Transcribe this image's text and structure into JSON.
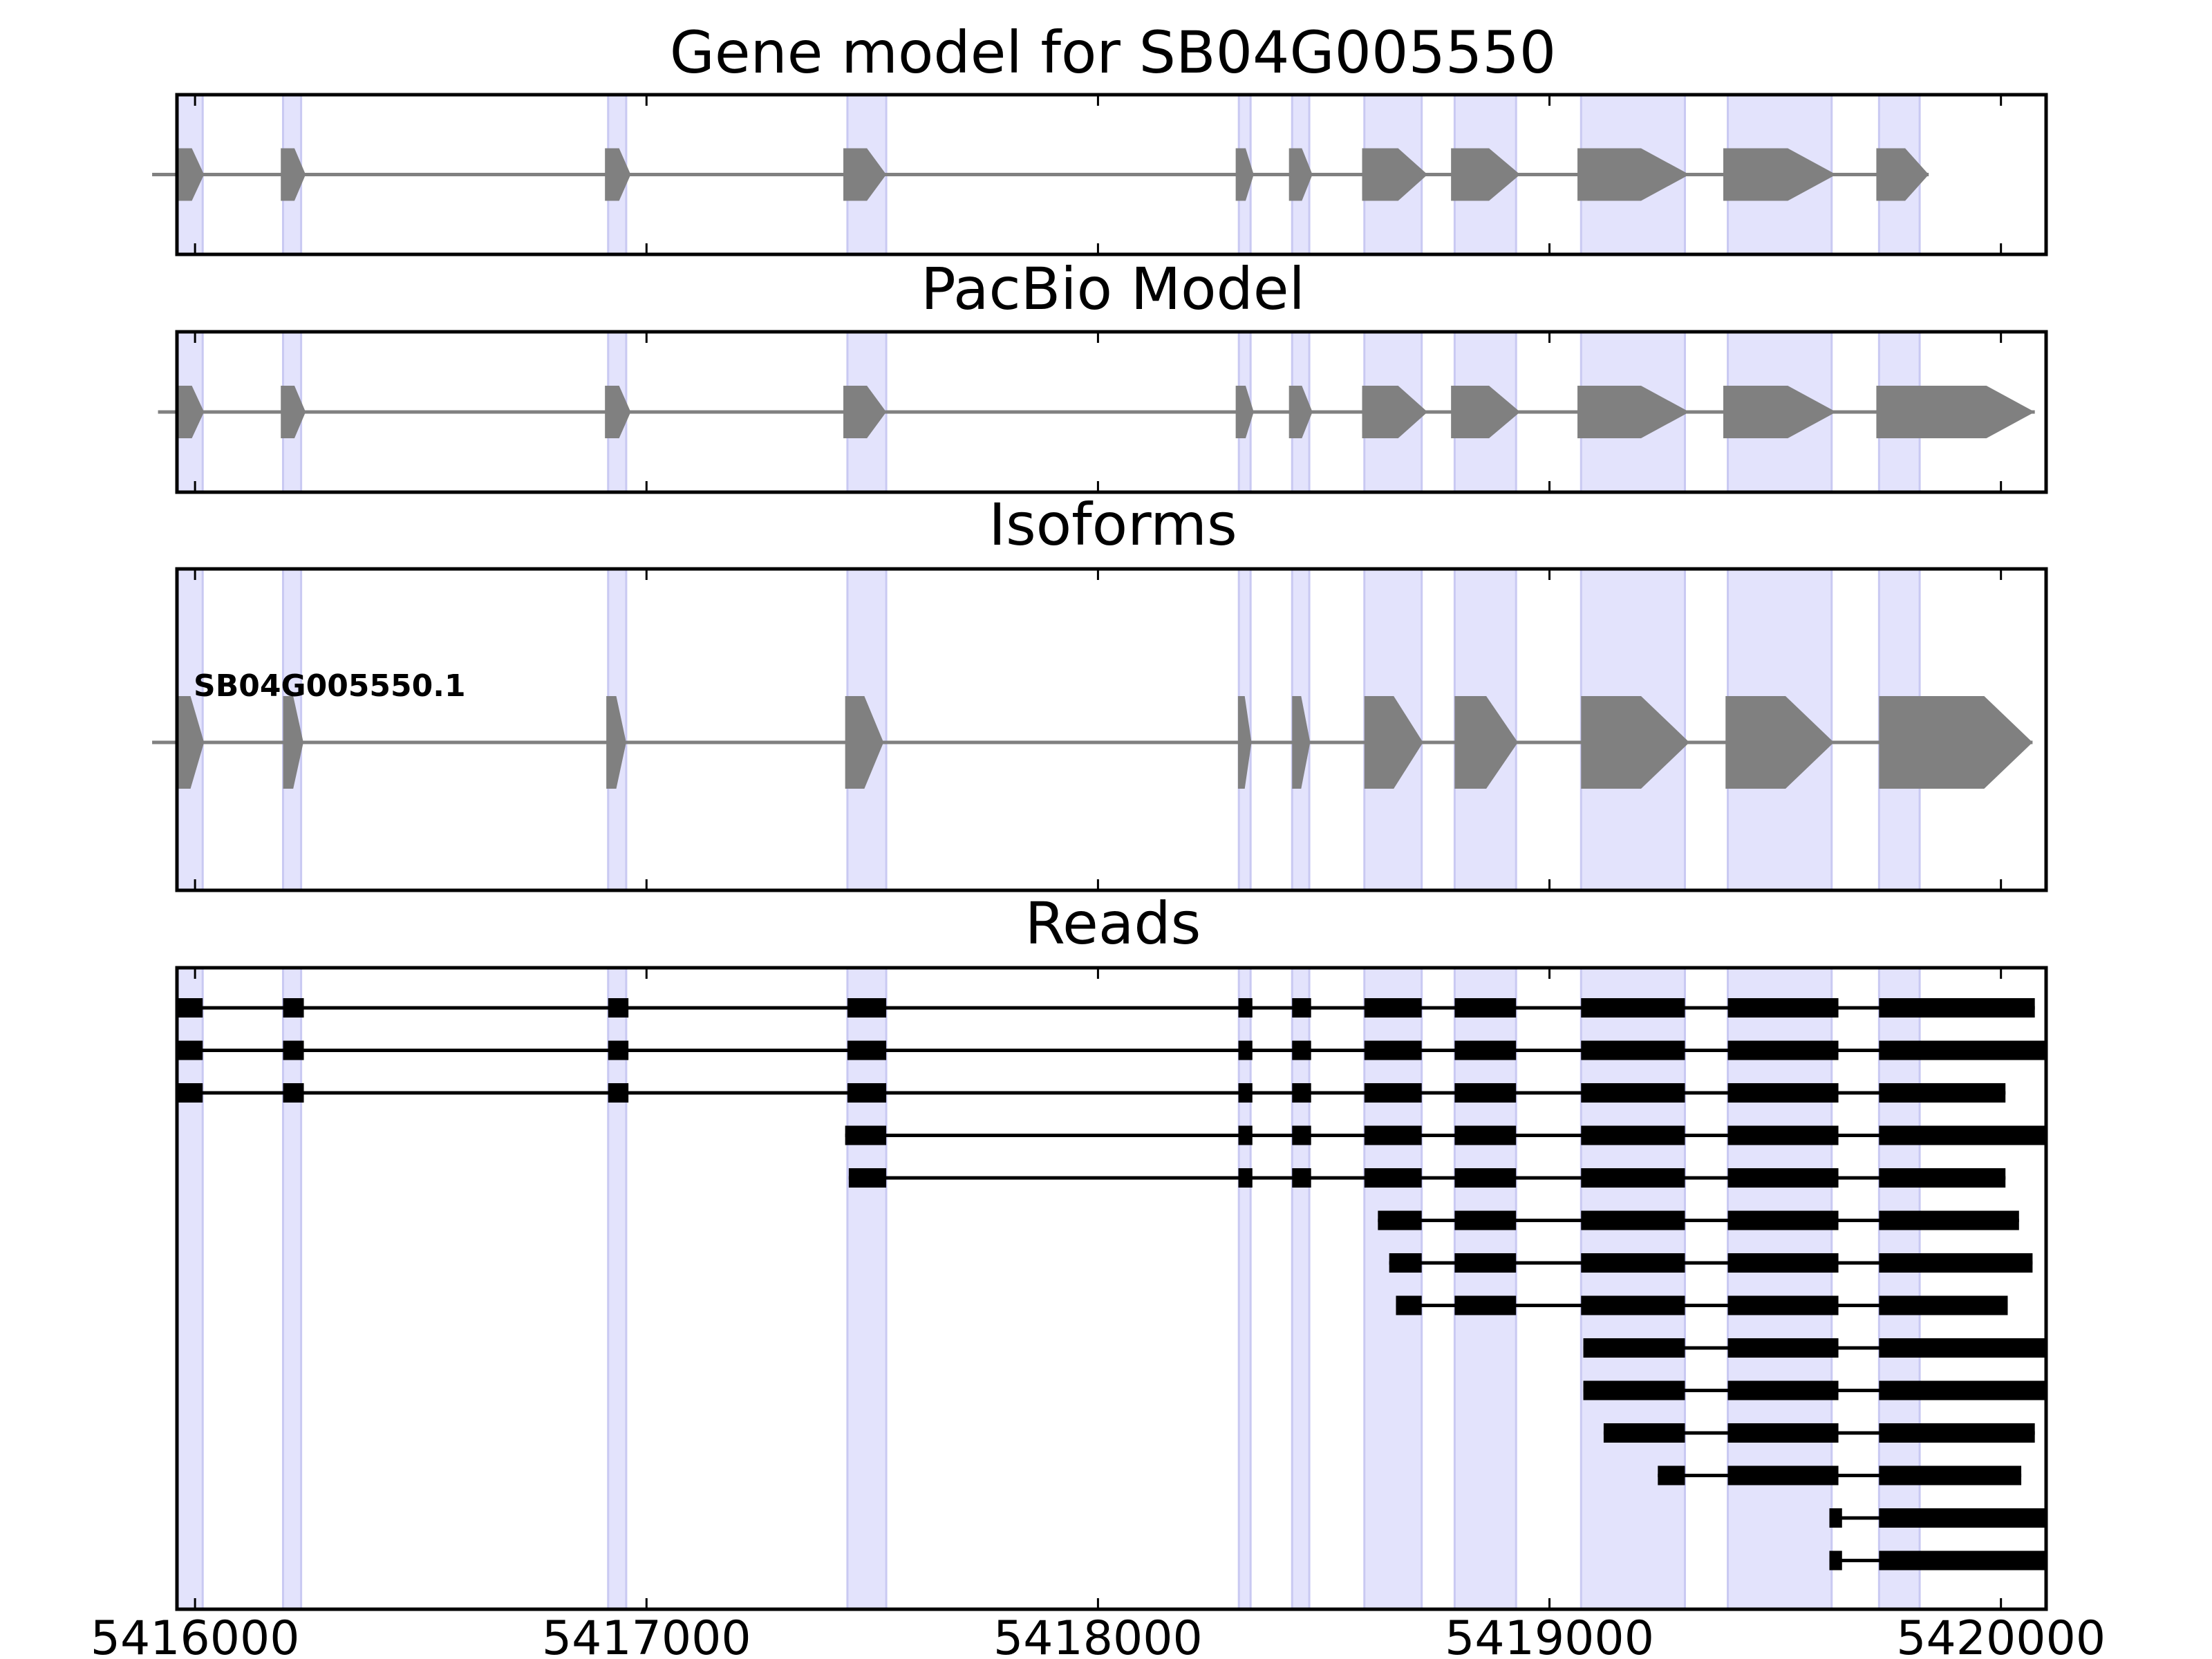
{
  "chart_data": {
    "type": "gene-model",
    "colors": {
      "exon_band": "#e3e3fc",
      "exon_band_edge": "#c9c9f2",
      "model_fill": "#808080",
      "read_fill": "#000000",
      "frame": "#000000"
    },
    "x_axis": {
      "range": [
        5415960,
        5420100
      ],
      "ticks": [
        5416000,
        5417000,
        5418000,
        5419000,
        5420000
      ],
      "tick_labels": [
        "5416000",
        "5417000",
        "5418000",
        "5419000",
        "5420000"
      ]
    },
    "exon_bands": [
      [
        5415910,
        5416017
      ],
      [
        5416195,
        5416235
      ],
      [
        5416915,
        5416955
      ],
      [
        5417445,
        5417531
      ],
      [
        5418312,
        5418338
      ],
      [
        5418430,
        5418468
      ],
      [
        5418590,
        5418717
      ],
      [
        5418790,
        5418926
      ],
      [
        5419070,
        5419300
      ],
      [
        5419395,
        5419625
      ],
      [
        5419730,
        5419820
      ]
    ],
    "panels": [
      {
        "name": "gene-model",
        "title": "Gene model for SB04G005550",
        "exons": [
          [
            5415905,
            5416020
          ],
          [
            5416190,
            5416245
          ],
          [
            5416908,
            5416965
          ],
          [
            5417436,
            5417531
          ],
          [
            5418305,
            5418345
          ],
          [
            5418423,
            5418475
          ],
          [
            5418585,
            5418730
          ],
          [
            5418782,
            5418935
          ],
          [
            5419062,
            5419310
          ],
          [
            5419385,
            5419635
          ],
          [
            5419724,
            5419840
          ]
        ]
      },
      {
        "name": "pacbio-model",
        "title": "PacBio Model",
        "exons": [
          [
            5415918,
            5416020
          ],
          [
            5416190,
            5416245
          ],
          [
            5416908,
            5416965
          ],
          [
            5417436,
            5417531
          ],
          [
            5418305,
            5418345
          ],
          [
            5418423,
            5418475
          ],
          [
            5418585,
            5418730
          ],
          [
            5418782,
            5418935
          ],
          [
            5419062,
            5419310
          ],
          [
            5419385,
            5419635
          ],
          [
            5419724,
            5420075
          ]
        ]
      },
      {
        "name": "isoforms",
        "title": "Isoforms",
        "isoforms": [
          {
            "label": "SB04G005550.1",
            "exons": [
              [
                5415905,
                5416020
              ],
              [
                5416195,
                5416240
              ],
              [
                5416911,
                5416955
              ],
              [
                5417440,
                5417525
              ],
              [
                5418310,
                5418340
              ],
              [
                5418430,
                5418470
              ],
              [
                5418590,
                5418720
              ],
              [
                5418790,
                5418930
              ],
              [
                5419070,
                5419310
              ],
              [
                5419390,
                5419630
              ],
              [
                5419730,
                5420070
              ]
            ]
          }
        ]
      },
      {
        "name": "reads",
        "title": "Reads",
        "reads": [
          [
            [
              5415910,
              5416017
            ],
            [
              5416195,
              5416241
            ],
            [
              5416915,
              5416960
            ],
            [
              5417445,
              5417531
            ],
            [
              5418311,
              5418342
            ],
            [
              5418430,
              5418472
            ],
            [
              5418590,
              5418717
            ],
            [
              5418790,
              5418926
            ],
            [
              5419070,
              5419300
            ],
            [
              5419395,
              5419640
            ],
            [
              5419730,
              5420075
            ]
          ],
          [
            [
              5415912,
              5416017
            ],
            [
              5416195,
              5416241
            ],
            [
              5416915,
              5416960
            ],
            [
              5417445,
              5417531
            ],
            [
              5418311,
              5418342
            ],
            [
              5418430,
              5418472
            ],
            [
              5418590,
              5418717
            ],
            [
              5418790,
              5418926
            ],
            [
              5419070,
              5419300
            ],
            [
              5419395,
              5419640
            ],
            [
              5419730,
              5420100
            ]
          ],
          [
            [
              5415915,
              5416017
            ],
            [
              5416195,
              5416241
            ],
            [
              5416915,
              5416960
            ],
            [
              5417445,
              5417531
            ],
            [
              5418311,
              5418342
            ],
            [
              5418430,
              5418472
            ],
            [
              5418590,
              5418717
            ],
            [
              5418790,
              5418926
            ],
            [
              5419070,
              5419300
            ],
            [
              5419395,
              5419640
            ],
            [
              5419730,
              5420010
            ]
          ],
          [
            [
              5417440,
              5417531
            ],
            [
              5418311,
              5418342
            ],
            [
              5418430,
              5418472
            ],
            [
              5418590,
              5418717
            ],
            [
              5418790,
              5418926
            ],
            [
              5419070,
              5419300
            ],
            [
              5419395,
              5419640
            ],
            [
              5419730,
              5420100
            ]
          ],
          [
            [
              5417448,
              5417531
            ],
            [
              5418311,
              5418342
            ],
            [
              5418430,
              5418472
            ],
            [
              5418590,
              5418717
            ],
            [
              5418790,
              5418926
            ],
            [
              5419070,
              5419300
            ],
            [
              5419395,
              5419640
            ],
            [
              5419730,
              5420010
            ]
          ],
          [
            [
              5418620,
              5418717
            ],
            [
              5418790,
              5418926
            ],
            [
              5419070,
              5419300
            ],
            [
              5419395,
              5419640
            ],
            [
              5419730,
              5420040
            ]
          ],
          [
            [
              5418645,
              5418717
            ],
            [
              5418790,
              5418926
            ],
            [
              5419070,
              5419300
            ],
            [
              5419395,
              5419640
            ],
            [
              5419730,
              5420070
            ]
          ],
          [
            [
              5418660,
              5418717
            ],
            [
              5418790,
              5418926
            ],
            [
              5419070,
              5419300
            ],
            [
              5419395,
              5419640
            ],
            [
              5419730,
              5420015
            ]
          ],
          [
            [
              5419075,
              5419300
            ],
            [
              5419395,
              5419640
            ],
            [
              5419730,
              5420100
            ]
          ],
          [
            [
              5419075,
              5419300
            ],
            [
              5419395,
              5419640
            ],
            [
              5419730,
              5420100
            ]
          ],
          [
            [
              5419120,
              5419300
            ],
            [
              5419395,
              5419640
            ],
            [
              5419730,
              5420075
            ]
          ],
          [
            [
              5419240,
              5419300
            ],
            [
              5419395,
              5419640
            ],
            [
              5419730,
              5420045
            ]
          ],
          [
            [
              5419620,
              5419648
            ],
            [
              5419730,
              5420100
            ]
          ],
          [
            [
              5419620,
              5419648
            ],
            [
              5419730,
              5420100
            ]
          ]
        ]
      }
    ]
  }
}
